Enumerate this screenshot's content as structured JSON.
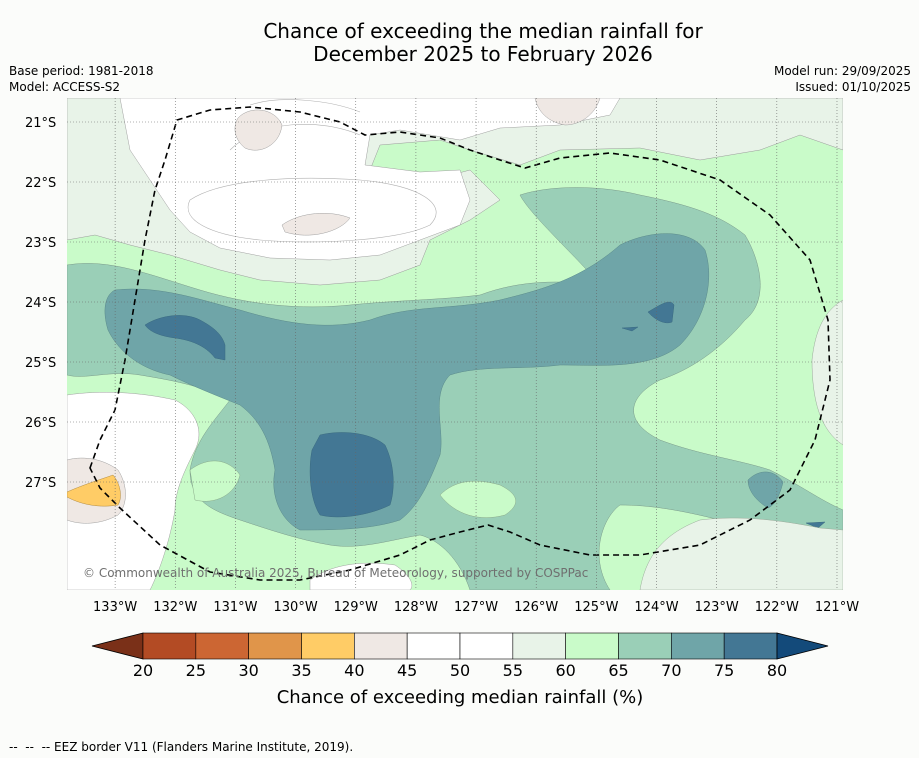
{
  "title": {
    "line1": "Chance of exceeding the median rainfall for",
    "line2": "December 2025 to February 2026"
  },
  "meta": {
    "base_period": "Base period: 1981-2018",
    "model": "Model: ACCESS-S2",
    "model_run": "Model run: 29/09/2025",
    "issued": "Issued: 01/10/2025"
  },
  "map": {
    "copyright": "© Commonwealth of Australia 2025, Bureau of Meteorology, supported by COSPPac",
    "lat_labels": [
      "21°S",
      "22°S",
      "23°S",
      "24°S",
      "25°S",
      "26°S",
      "27°S"
    ],
    "lon_labels": [
      "133°W",
      "132°W",
      "131°W",
      "130°W",
      "129°W",
      "128°W",
      "127°W",
      "126°W",
      "125°W",
      "124°W",
      "123°W",
      "122°W",
      "121°W"
    ],
    "lat_values": [
      -21,
      -22,
      -23,
      -24,
      -25,
      -26,
      -27
    ],
    "lon_values": [
      -133,
      -132,
      -131,
      -130,
      -129,
      -128,
      -127,
      -126,
      -125,
      -124,
      -123,
      -122,
      -121
    ],
    "lon_range": [
      -133.8,
      -120.9
    ],
    "lat_range": [
      -20.6,
      -28.8
    ]
  },
  "colorbar": {
    "ticks": [
      "20",
      "25",
      "30",
      "35",
      "40",
      "45",
      "50",
      "55",
      "60",
      "65",
      "70",
      "75",
      "80"
    ],
    "colors": [
      "#b34b24",
      "#cc6633",
      "#e0954a",
      "#ffcc66",
      "#efe8e4",
      "#ffffff",
      "#ffffff",
      "#e8f3e8",
      "#c9fbc9",
      "#9acfb7",
      "#6fa5a8",
      "#437794"
    ],
    "under_color": "#7a3018",
    "over_color": "#134a7a",
    "label": "Chance of exceeding median rainfall (%)"
  },
  "footnote": "--  --  -- EEZ border V11 (Flanders Marine Institute, 2019)."
}
